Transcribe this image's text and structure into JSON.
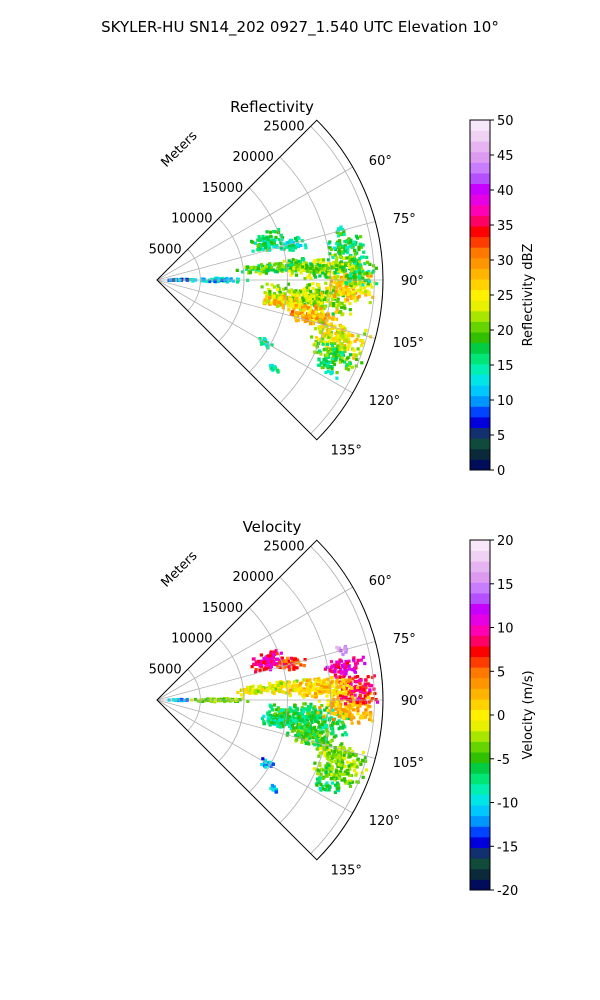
{
  "figure": {
    "suptitle": "SKYLER-HU  SN14_202  0927_1.540 UTC Elevation 10°"
  },
  "chart_data": [
    {
      "type": "polar-sector-heatmap",
      "title": "Reflectivity",
      "range_label": "Meters",
      "range_ticks": [
        5000,
        10000,
        15000,
        20000,
        25000
      ],
      "range_limit": [
        0,
        26000
      ],
      "angle_ticks": [
        60,
        75,
        90,
        105,
        120,
        135
      ],
      "angle_tick_labels": [
        "60°",
        "75°",
        "90°",
        "105°",
        "120°",
        "135°"
      ],
      "angle_range_deg": [
        45,
        135
      ],
      "grid": true,
      "colorbar": {
        "label": "Reflectivity dBZ",
        "min": 0,
        "max": 50,
        "ticks": [
          0,
          5,
          10,
          15,
          20,
          25,
          30,
          35,
          40,
          45,
          50
        ],
        "colors": [
          "#000d5a",
          "#0a2a3a",
          "#0f4a3a",
          "#12306e",
          "#0000dd",
          "#0044ff",
          "#0096ff",
          "#00c8ff",
          "#00e6e6",
          "#00f0b4",
          "#00e676",
          "#00cc44",
          "#30c000",
          "#66d400",
          "#a6e600",
          "#e6f000",
          "#fff000",
          "#ffd200",
          "#ffb400",
          "#ff9600",
          "#ff7800",
          "#ff3c00",
          "#ff0000",
          "#ff0064",
          "#ff00b4",
          "#e600e6",
          "#c800ff",
          "#b450ff",
          "#c87dff",
          "#dc9bf0",
          "#e6b4f0",
          "#f0d2f5",
          "#f8e6fa"
        ]
      },
      "echoes": [
        {
          "az": 97,
          "r": 17500,
          "dr": 5500,
          "daz": 6,
          "value": 22
        },
        {
          "az": 100,
          "r": 14500,
          "dr": 3000,
          "daz": 3,
          "value": 26
        },
        {
          "az": 103,
          "r": 18500,
          "dr": 3200,
          "daz": 4,
          "value": 28
        },
        {
          "az": 92,
          "r": 22000,
          "dr": 3500,
          "daz": 5,
          "value": 26
        },
        {
          "az": 87,
          "r": 23000,
          "dr": 2500,
          "daz": 5,
          "value": 18
        },
        {
          "az": 84,
          "r": 14000,
          "dr": 5000,
          "daz": 3,
          "value": 19
        },
        {
          "az": 86,
          "r": 19000,
          "dr": 4500,
          "daz": 4,
          "value": 21
        },
        {
          "az": 108,
          "r": 22000,
          "dr": 3500,
          "daz": 5,
          "value": 24
        },
        {
          "az": 113,
          "r": 22500,
          "dr": 3000,
          "daz": 3,
          "value": 19
        },
        {
          "az": 117,
          "r": 22000,
          "dr": 1800,
          "daz": 2,
          "value": 17
        },
        {
          "az": 71,
          "r": 13500,
          "dr": 2200,
          "daz": 5,
          "value": 16
        },
        {
          "az": 75,
          "r": 16000,
          "dr": 1800,
          "daz": 3,
          "value": 15
        },
        {
          "az": 80,
          "r": 22000,
          "dr": 2500,
          "daz": 3,
          "value": 17
        },
        {
          "az": 90,
          "r": 7000,
          "dr": 3500,
          "daz": 2,
          "value": 12
        },
        {
          "az": 90,
          "r": 2500,
          "dr": 1200,
          "daz": 2,
          "value": 9
        },
        {
          "az": 120,
          "r": 14500,
          "dr": 1000,
          "daz": 2,
          "value": 17
        },
        {
          "az": 127,
          "r": 17000,
          "dr": 700,
          "daz": 1.5,
          "value": 16
        },
        {
          "az": 75,
          "r": 22000,
          "dr": 700,
          "daz": 1.5,
          "value": 16
        }
      ]
    },
    {
      "type": "polar-sector-heatmap",
      "title": "Velocity",
      "range_label": "Meters",
      "range_ticks": [
        5000,
        10000,
        15000,
        20000,
        25000
      ],
      "range_limit": [
        0,
        26000
      ],
      "angle_ticks": [
        60,
        75,
        90,
        105,
        120,
        135
      ],
      "angle_tick_labels": [
        "60°",
        "75°",
        "90°",
        "105°",
        "120°",
        "135°"
      ],
      "angle_range_deg": [
        45,
        135
      ],
      "grid": true,
      "colorbar": {
        "label": "Velocity (m/s)",
        "min": -20,
        "max": 20,
        "ticks": [
          -20,
          -15,
          -10,
          -5,
          0,
          5,
          10,
          15,
          20
        ],
        "colors": [
          "#000d5a",
          "#0a2a3a",
          "#0f4a3a",
          "#12306e",
          "#0000dd",
          "#0044ff",
          "#0096ff",
          "#00c8ff",
          "#00e6e6",
          "#00f0b4",
          "#00e676",
          "#00cc44",
          "#30c000",
          "#66d400",
          "#a6e600",
          "#e6f000",
          "#fff000",
          "#ffd200",
          "#ffb400",
          "#ff9600",
          "#ff7800",
          "#ff3c00",
          "#ff0000",
          "#ff0064",
          "#ff00b4",
          "#e600e6",
          "#c800ff",
          "#b450ff",
          "#c87dff",
          "#dc9bf0",
          "#e6b4f0",
          "#f0d2f5",
          "#f8e6fa"
        ]
      },
      "echoes": [
        {
          "az": 97,
          "r": 17500,
          "dr": 5500,
          "daz": 6,
          "value": -6
        },
        {
          "az": 100,
          "r": 14500,
          "dr": 3000,
          "daz": 3,
          "value": -7
        },
        {
          "az": 103,
          "r": 18500,
          "dr": 3200,
          "daz": 4,
          "value": -5
        },
        {
          "az": 92,
          "r": 22000,
          "dr": 3500,
          "daz": 5,
          "value": 2
        },
        {
          "az": 87,
          "r": 23000,
          "dr": 2500,
          "daz": 5,
          "value": 8
        },
        {
          "az": 84,
          "r": 14000,
          "dr": 5000,
          "daz": 3,
          "value": -1
        },
        {
          "az": 86,
          "r": 19000,
          "dr": 4500,
          "daz": 4,
          "value": 1
        },
        {
          "az": 108,
          "r": 22000,
          "dr": 3500,
          "daz": 5,
          "value": -3
        },
        {
          "az": 113,
          "r": 22500,
          "dr": 3000,
          "daz": 3,
          "value": -4
        },
        {
          "az": 117,
          "r": 22000,
          "dr": 1800,
          "daz": 2,
          "value": -7
        },
        {
          "az": 71,
          "r": 13500,
          "dr": 2200,
          "daz": 5,
          "value": 9
        },
        {
          "az": 75,
          "r": 16000,
          "dr": 1800,
          "daz": 3,
          "value": 6
        },
        {
          "az": 80,
          "r": 22000,
          "dr": 2500,
          "daz": 3,
          "value": 10
        },
        {
          "az": 90,
          "r": 7000,
          "dr": 3500,
          "daz": 2,
          "value": -3
        },
        {
          "az": 90,
          "r": 2500,
          "dr": 1200,
          "daz": 2,
          "value": -11
        },
        {
          "az": 120,
          "r": 14500,
          "dr": 1000,
          "daz": 2,
          "value": -12
        },
        {
          "az": 127,
          "r": 17000,
          "dr": 700,
          "daz": 1.5,
          "value": -11
        },
        {
          "az": 75,
          "r": 22000,
          "dr": 700,
          "daz": 1.5,
          "value": 15
        }
      ]
    }
  ]
}
